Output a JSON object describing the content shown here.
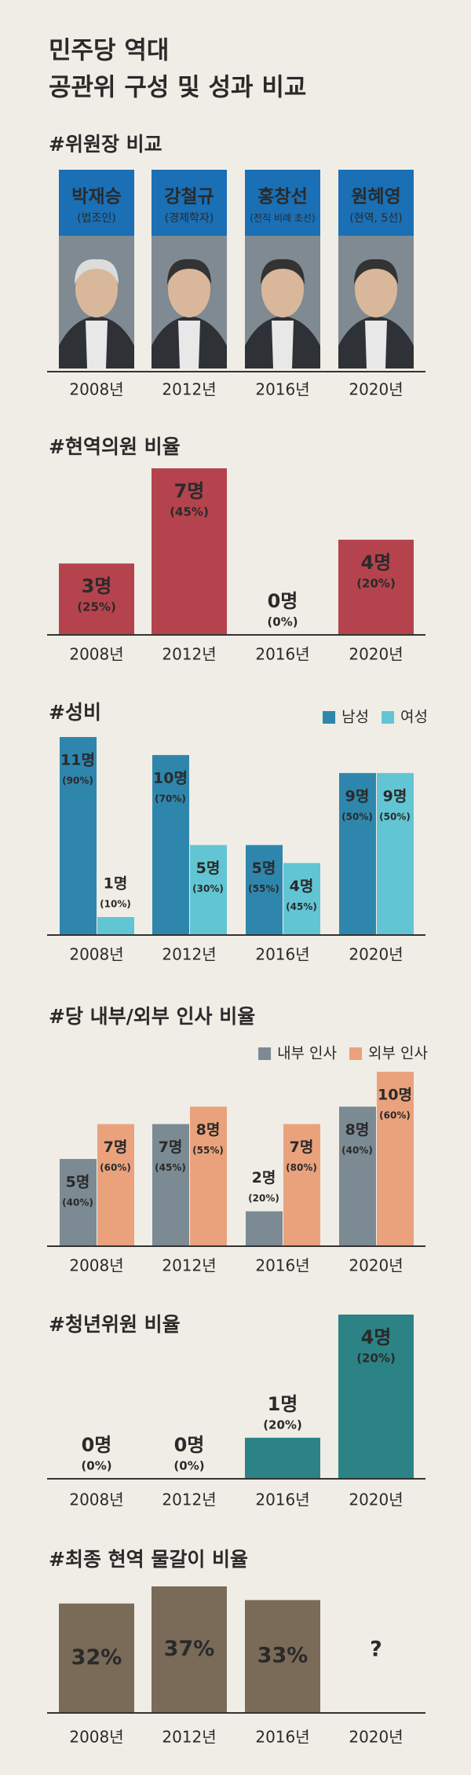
{
  "title": [
    "민주당 역대",
    "공관위 구성 및 성과 비교"
  ],
  "chart_data": [
    {
      "type": "profiles",
      "title": "#위원장 비교",
      "categories": [
        "2008년",
        "2012년",
        "2016년",
        "2020년"
      ],
      "names": [
        "박재승",
        "강철규",
        "홍창선",
        "원혜영"
      ],
      "notes": [
        "(법조인)",
        "(경제학자)",
        "(전직 비례 초선)",
        "(현역, 5선)"
      ],
      "color": "#1a6fb5"
    },
    {
      "type": "bar",
      "title": "#현역의원 비율",
      "categories": [
        "2008년",
        "2012년",
        "2016년",
        "2020년"
      ],
      "values": [
        3,
        7,
        0,
        4
      ],
      "value_labels": [
        "3명",
        "7명",
        "0명",
        "4명"
      ],
      "shares": [
        25,
        45,
        0,
        20
      ],
      "share_labels": [
        "(25%)",
        "(45%)",
        "(0%)",
        "(20%)"
      ],
      "color": "#b5434d",
      "ylim": [
        0,
        7
      ]
    },
    {
      "type": "grouped_bar",
      "title": "#성비",
      "categories": [
        "2008년",
        "2012년",
        "2016년",
        "2020년"
      ],
      "series": [
        {
          "name": "남성",
          "color": "#2f86ad",
          "values": [
            11,
            10,
            5,
            9
          ],
          "value_labels": [
            "11명",
            "10명",
            "5명",
            "9명"
          ],
          "shares": [
            90,
            70,
            55,
            50
          ],
          "share_labels": [
            "(90%)",
            "(70%)",
            "(55%)",
            "(50%)"
          ]
        },
        {
          "name": "여성",
          "color": "#62c5d3",
          "values": [
            1,
            5,
            4,
            9
          ],
          "value_labels": [
            "1명",
            "5명",
            "4명",
            "9명"
          ],
          "shares": [
            10,
            30,
            45,
            50
          ],
          "share_labels": [
            "(10%)",
            "(30%)",
            "(45%)",
            "(50%)"
          ]
        }
      ],
      "ylim": [
        0,
        11
      ],
      "legend": "top-right"
    },
    {
      "type": "grouped_bar",
      "title": "#당 내부/외부 인사 비율",
      "categories": [
        "2008년",
        "2012년",
        "2016년",
        "2020년"
      ],
      "series": [
        {
          "name": "내부 인사",
          "color": "#7b8a93",
          "values": [
            5,
            7,
            2,
            8
          ],
          "value_labels": [
            "5명",
            "7명",
            "2명",
            "8명"
          ],
          "shares": [
            40,
            45,
            20,
            40
          ],
          "share_labels": [
            "(40%)",
            "(45%)",
            "(20%)",
            "(40%)"
          ]
        },
        {
          "name": "외부 인사",
          "color": "#eaa27c",
          "values": [
            7,
            8,
            7,
            10
          ],
          "value_labels": [
            "7명",
            "8명",
            "7명",
            "10명"
          ],
          "shares": [
            60,
            55,
            80,
            60
          ],
          "share_labels": [
            "(60%)",
            "(55%)",
            "(80%)",
            "(60%)"
          ]
        }
      ],
      "ylim": [
        0,
        10
      ],
      "legend": "top-right"
    },
    {
      "type": "bar",
      "title": "#청년위원 비율",
      "categories": [
        "2008년",
        "2012년",
        "2016년",
        "2020년"
      ],
      "values": [
        0,
        0,
        1,
        4
      ],
      "value_labels": [
        "0명",
        "0명",
        "1명",
        "4명"
      ],
      "shares": [
        0,
        0,
        20,
        20
      ],
      "share_labels": [
        "(0%)",
        "(0%)",
        "(20%)",
        "(20%)"
      ],
      "color": "#2b8385",
      "ylim": [
        0,
        4
      ]
    },
    {
      "type": "bar",
      "title": "#최종 현역 물갈이 비율",
      "categories": [
        "2008년",
        "2012년",
        "2016년",
        "2020년"
      ],
      "values": [
        32,
        37,
        33,
        null
      ],
      "value_labels": [
        "32%",
        "37%",
        "33%",
        "?"
      ],
      "color": "#7a6a58",
      "ylim": [
        0,
        37
      ]
    }
  ]
}
